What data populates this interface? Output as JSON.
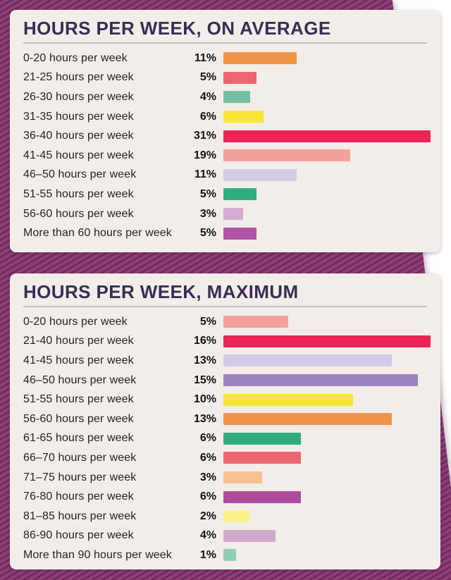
{
  "page": {
    "background_color": "#ffffff",
    "backdrop_stripe_dark": "#6d2a5c",
    "backdrop_stripe_light": "#8e3d78",
    "card_background": "#f2ede8",
    "title_color": "#3b2c55"
  },
  "chart_data": [
    {
      "type": "bar",
      "title": "HOURS PER WEEK, ON AVERAGE",
      "orientation": "horizontal",
      "unit": "percent",
      "xlim": [
        0,
        31
      ],
      "grid": false,
      "categories": [
        "0-20 hours per week",
        "21-25 hours per week",
        "26-30 hours per week",
        "31-35 hours per week",
        "36-40 hours per week",
        "41-45 hours per week",
        "46–50 hours per week",
        "51-55 hours per week",
        "56-60 hours per week",
        "More than 60 hours per week"
      ],
      "values": [
        11,
        5,
        4,
        6,
        31,
        19,
        11,
        5,
        3,
        5
      ],
      "value_labels": [
        "11%",
        "5%",
        "4%",
        "6%",
        "31%",
        "19%",
        "11%",
        "5%",
        "3%",
        "5%"
      ],
      "colors": [
        "#EE9549",
        "#ED6571",
        "#72BFA1",
        "#F8E636",
        "#EC2556",
        "#F2A29A",
        "#D4CBE7",
        "#2EAE7D",
        "#D6ABD4",
        "#B154A4"
      ]
    },
    {
      "type": "bar",
      "title": "HOURS PER WEEK, MAXIMUM",
      "orientation": "horizontal",
      "unit": "percent",
      "xlim": [
        0,
        16
      ],
      "grid": false,
      "categories": [
        "0-20 hours per week",
        "21-40 hours per week",
        "41-45 hours per week",
        "46–50 hours per week",
        "51-55 hours per week",
        "56-60 hours per week",
        "61-65 hours per week",
        "66–70 hours per week",
        "71–75 hours per week",
        "76-80 hours per week",
        "81–85 hours per week",
        "86-90 hours per week",
        "More than 90 hours per week"
      ],
      "values": [
        5,
        16,
        13,
        15,
        10,
        13,
        6,
        6,
        3,
        6,
        2,
        4,
        1
      ],
      "value_labels": [
        "5%",
        "16%",
        "13%",
        "15%",
        "10%",
        "13%",
        "6%",
        "6%",
        "3%",
        "6%",
        "2%",
        "4%",
        "1%"
      ],
      "colors": [
        "#F2A09B",
        "#EC2556",
        "#D4CBE7",
        "#9C84BF",
        "#F8E636",
        "#EE9549",
        "#2EAE7D",
        "#ED6571",
        "#F6C28F",
        "#AC4D9B",
        "#FBF08E",
        "#D2A9CE",
        "#8FD0B4"
      ]
    }
  ]
}
